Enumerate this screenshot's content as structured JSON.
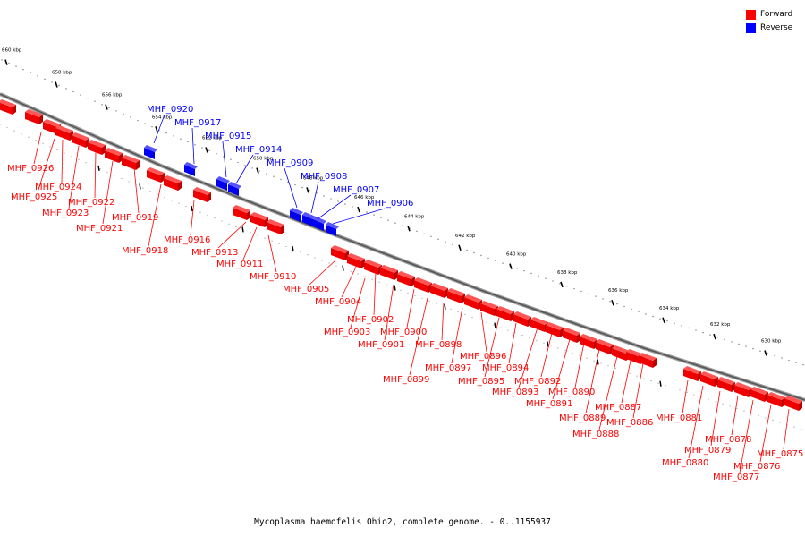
{
  "legend": {
    "forward_label": "Forward",
    "reverse_label": "Reverse",
    "forward_color": "#ff0000",
    "reverse_color": "#0000ff"
  },
  "caption": "Mycoplasma haemofelis Ohio2, complete genome. - 0..1155937",
  "ruler": {
    "ticks": [
      "660 kbp",
      "658 kbp",
      "656 kbp",
      "654 kbp",
      "652 kbp",
      "650 kbp",
      "648 kbp",
      "646 kbp",
      "644 kbp",
      "642 kbp",
      "640 kbp",
      "638 kbp",
      "636 kbp",
      "634 kbp",
      "632 kbp",
      "630 kbp"
    ]
  },
  "forward_genes": [
    "MHF_0926",
    "MHF_0924",
    "MHF_0925",
    "MHF_0922",
    "MHF_0923",
    "MHF_0921",
    "MHF_0919",
    "MHF_0918",
    "MHF_0916",
    "MHF_0913",
    "MHF_0911",
    "MHF_0910",
    "MHF_0905",
    "MHF_0904",
    "MHF_0902",
    "MHF_0903",
    "MHF_0901",
    "MHF_0900",
    "MHF_0899",
    "MHF_0898",
    "MHF_0897",
    "MHF_0896",
    "MHF_0895",
    "MHF_0894",
    "MHF_0893",
    "MHF_0892",
    "MHF_0891",
    "MHF_0890",
    "MHF_0889",
    "MHF_0888",
    "MHF_0887",
    "MHF_0886",
    "MHF_0881",
    "MHF_0880",
    "MHF_0879",
    "MHF_0878",
    "MHF_0877",
    "MHF_0876",
    "MHF_0875"
  ],
  "reverse_genes": [
    "MHF_0920",
    "MHF_0917",
    "MHF_0915",
    "MHF_0914",
    "MHF_0909",
    "MHF_0908",
    "MHF_0907",
    "MHF_0906"
  ]
}
